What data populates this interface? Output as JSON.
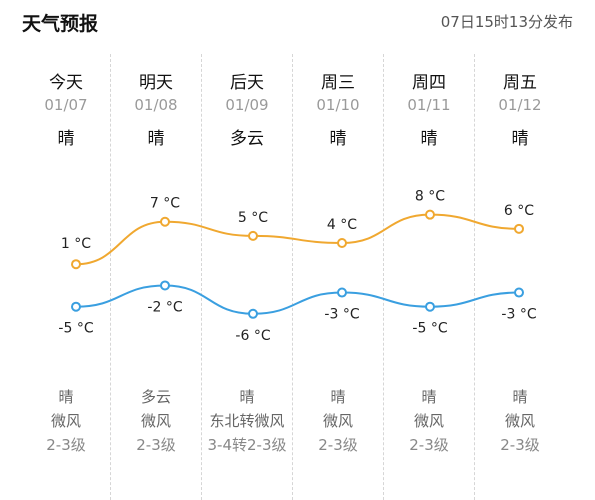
{
  "header": {
    "title": "天气预报",
    "publish_time": "07日15时13分发布"
  },
  "days": [
    {
      "name": "今天",
      "date": "01/07",
      "day_condition": "晴",
      "night_condition": "晴",
      "wind": "微风",
      "wind_level": "2-3级",
      "high": "1 °C",
      "low": "-5 °C"
    },
    {
      "name": "明天",
      "date": "01/08",
      "day_condition": "晴",
      "night_condition": "多云",
      "wind": "微风",
      "wind_level": "2-3级",
      "high": "7 °C",
      "low": "-2 °C"
    },
    {
      "name": "后天",
      "date": "01/09",
      "day_condition": "多云",
      "night_condition": "晴",
      "wind": "东北转微风",
      "wind_level": "3-4转2-3级",
      "high": "5 °C",
      "low": "-6 °C"
    },
    {
      "name": "周三",
      "date": "01/10",
      "day_condition": "晴",
      "night_condition": "晴",
      "wind": "微风",
      "wind_level": "2-3级",
      "high": "4 °C",
      "low": "-3 °C"
    },
    {
      "name": "周四",
      "date": "01/11",
      "day_condition": "晴",
      "night_condition": "晴",
      "wind": "微风",
      "wind_level": "2-3级",
      "high": "8 °C",
      "low": "-5 °C"
    },
    {
      "name": "周五",
      "date": "01/12",
      "day_condition": "晴",
      "night_condition": "晴",
      "wind": "微风",
      "wind_level": "2-3级",
      "high": "6 °C",
      "low": "-3 °C"
    }
  ],
  "chart_data": {
    "type": "line",
    "categories": [
      "今天",
      "明天",
      "后天",
      "周三",
      "周四",
      "周五"
    ],
    "series": [
      {
        "values": [
          1,
          7,
          5,
          4,
          8,
          6
        ],
        "color": "#f0a830"
      },
      {
        "values": [
          -5,
          -2,
          -6,
          -3,
          -5,
          -3
        ],
        "color": "#3a9fe0"
      }
    ],
    "unit": "°C"
  }
}
